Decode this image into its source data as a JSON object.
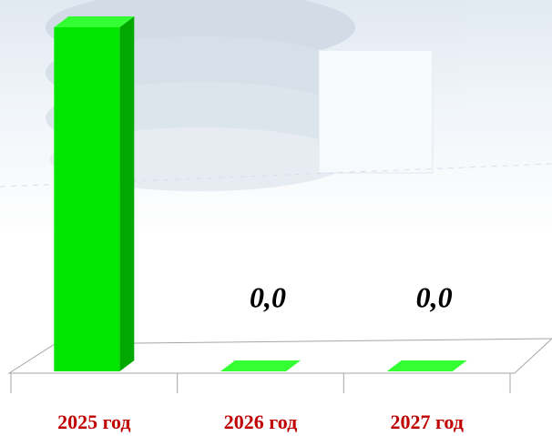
{
  "chart_data": {
    "type": "bar3d",
    "categories": [
      "2025 год",
      "2026 год",
      "2027 год"
    ],
    "values": [
      100,
      0,
      0
    ],
    "value_labels": [
      null,
      "0,0",
      "0,0"
    ],
    "color": "#00e600",
    "ylim": [
      0,
      100
    ]
  }
}
